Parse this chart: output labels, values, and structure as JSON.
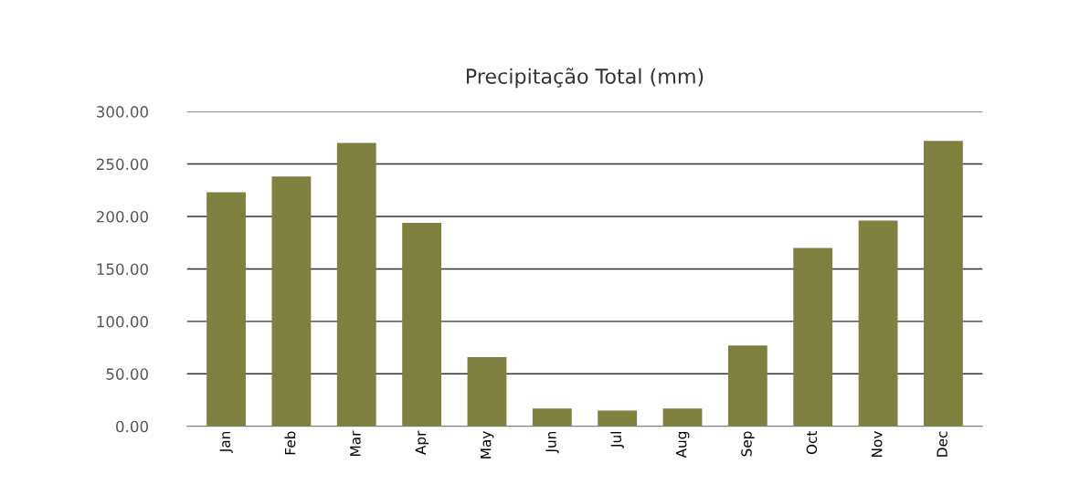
{
  "chart_data": {
    "type": "bar",
    "title": "Precipitação Total (mm)",
    "categories": [
      "Jan",
      "Feb",
      "Mar",
      "Apr",
      "May",
      "Jun",
      "Jul",
      "Aug",
      "Sep",
      "Oct",
      "Nov",
      "Dec"
    ],
    "values": [
      223,
      238,
      270,
      194,
      66,
      17,
      15,
      17,
      77,
      170,
      196,
      272
    ],
    "color": "#7f7f3f",
    "ylim": [
      0,
      300
    ],
    "yticks": [
      {
        "value": 0,
        "label": "0.00"
      },
      {
        "value": 50,
        "label": "50.00"
      },
      {
        "value": 100,
        "label": "100.00"
      },
      {
        "value": 150,
        "label": "150.00"
      },
      {
        "value": 200,
        "label": "200.00"
      },
      {
        "value": 250,
        "label": "250.00"
      },
      {
        "value": 300,
        "label": "300.00"
      }
    ],
    "grid": "y"
  }
}
